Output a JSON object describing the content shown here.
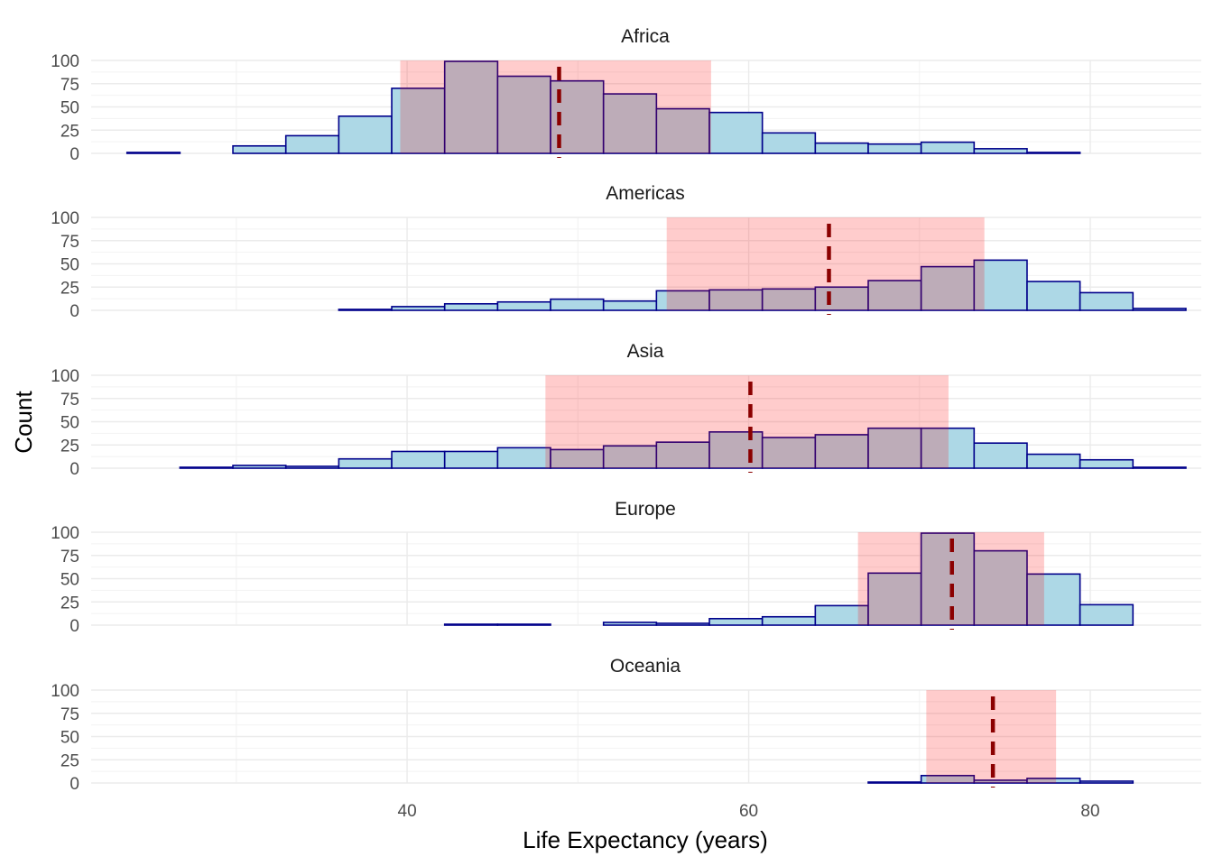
{
  "chart_data": {
    "type": "bar",
    "subtype": "faceted-histogram",
    "xlabel": "Life Expectancy (years)",
    "ylabel": "Count",
    "xlim": [
      21.5,
      86.5
    ],
    "xticks": [
      40,
      60,
      80
    ],
    "ylim": [
      0,
      100
    ],
    "yticks": [
      0,
      25,
      50,
      75,
      100
    ],
    "bin_edges": [
      23.6,
      26.7,
      29.8,
      32.9,
      36.0,
      39.1,
      42.2,
      45.3,
      48.4,
      51.5,
      54.6,
      57.7,
      60.8,
      63.9,
      67.0,
      70.1,
      73.2,
      76.3,
      79.4,
      82.5,
      85.6
    ],
    "grid": true,
    "legend": "none",
    "colors": {
      "bar_fill": "#add8e6",
      "bar_outline": "#00008b",
      "band_fill": "#ff000033",
      "mean_line": "#8b0000"
    },
    "facets": [
      {
        "name": "Africa",
        "counts": [
          1,
          0,
          8,
          19,
          40,
          70,
          99,
          83,
          78,
          64,
          48,
          44,
          22,
          11,
          10,
          12,
          5,
          1,
          0,
          0
        ],
        "band": [
          39.6,
          57.8
        ],
        "mean": 48.9
      },
      {
        "name": "Americas",
        "counts": [
          0,
          0,
          0,
          0,
          1,
          4,
          7,
          9,
          12,
          10,
          21,
          22,
          23,
          25,
          32,
          47,
          54,
          31,
          19,
          2
        ],
        "band": [
          55.2,
          73.8
        ],
        "mean": 64.7
      },
      {
        "name": "Asia",
        "counts": [
          0,
          1,
          3,
          2,
          10,
          18,
          18,
          22,
          20,
          24,
          28,
          39,
          33,
          36,
          43,
          43,
          27,
          15,
          9,
          1
        ],
        "band": [
          48.1,
          71.7
        ],
        "mean": 60.1
      },
      {
        "name": "Europe",
        "counts": [
          0,
          0,
          0,
          0,
          0,
          0,
          1,
          1,
          0,
          3,
          2,
          7,
          9,
          21,
          56,
          99,
          80,
          55,
          22,
          0
        ],
        "band": [
          66.4,
          77.3
        ],
        "mean": 71.9
      },
      {
        "name": "Oceania",
        "counts": [
          0,
          0,
          0,
          0,
          0,
          0,
          0,
          0,
          0,
          0,
          0,
          0,
          0,
          0,
          1,
          8,
          3,
          5,
          2,
          0
        ],
        "band": [
          70.4,
          78.0
        ],
        "mean": 74.3
      }
    ]
  }
}
